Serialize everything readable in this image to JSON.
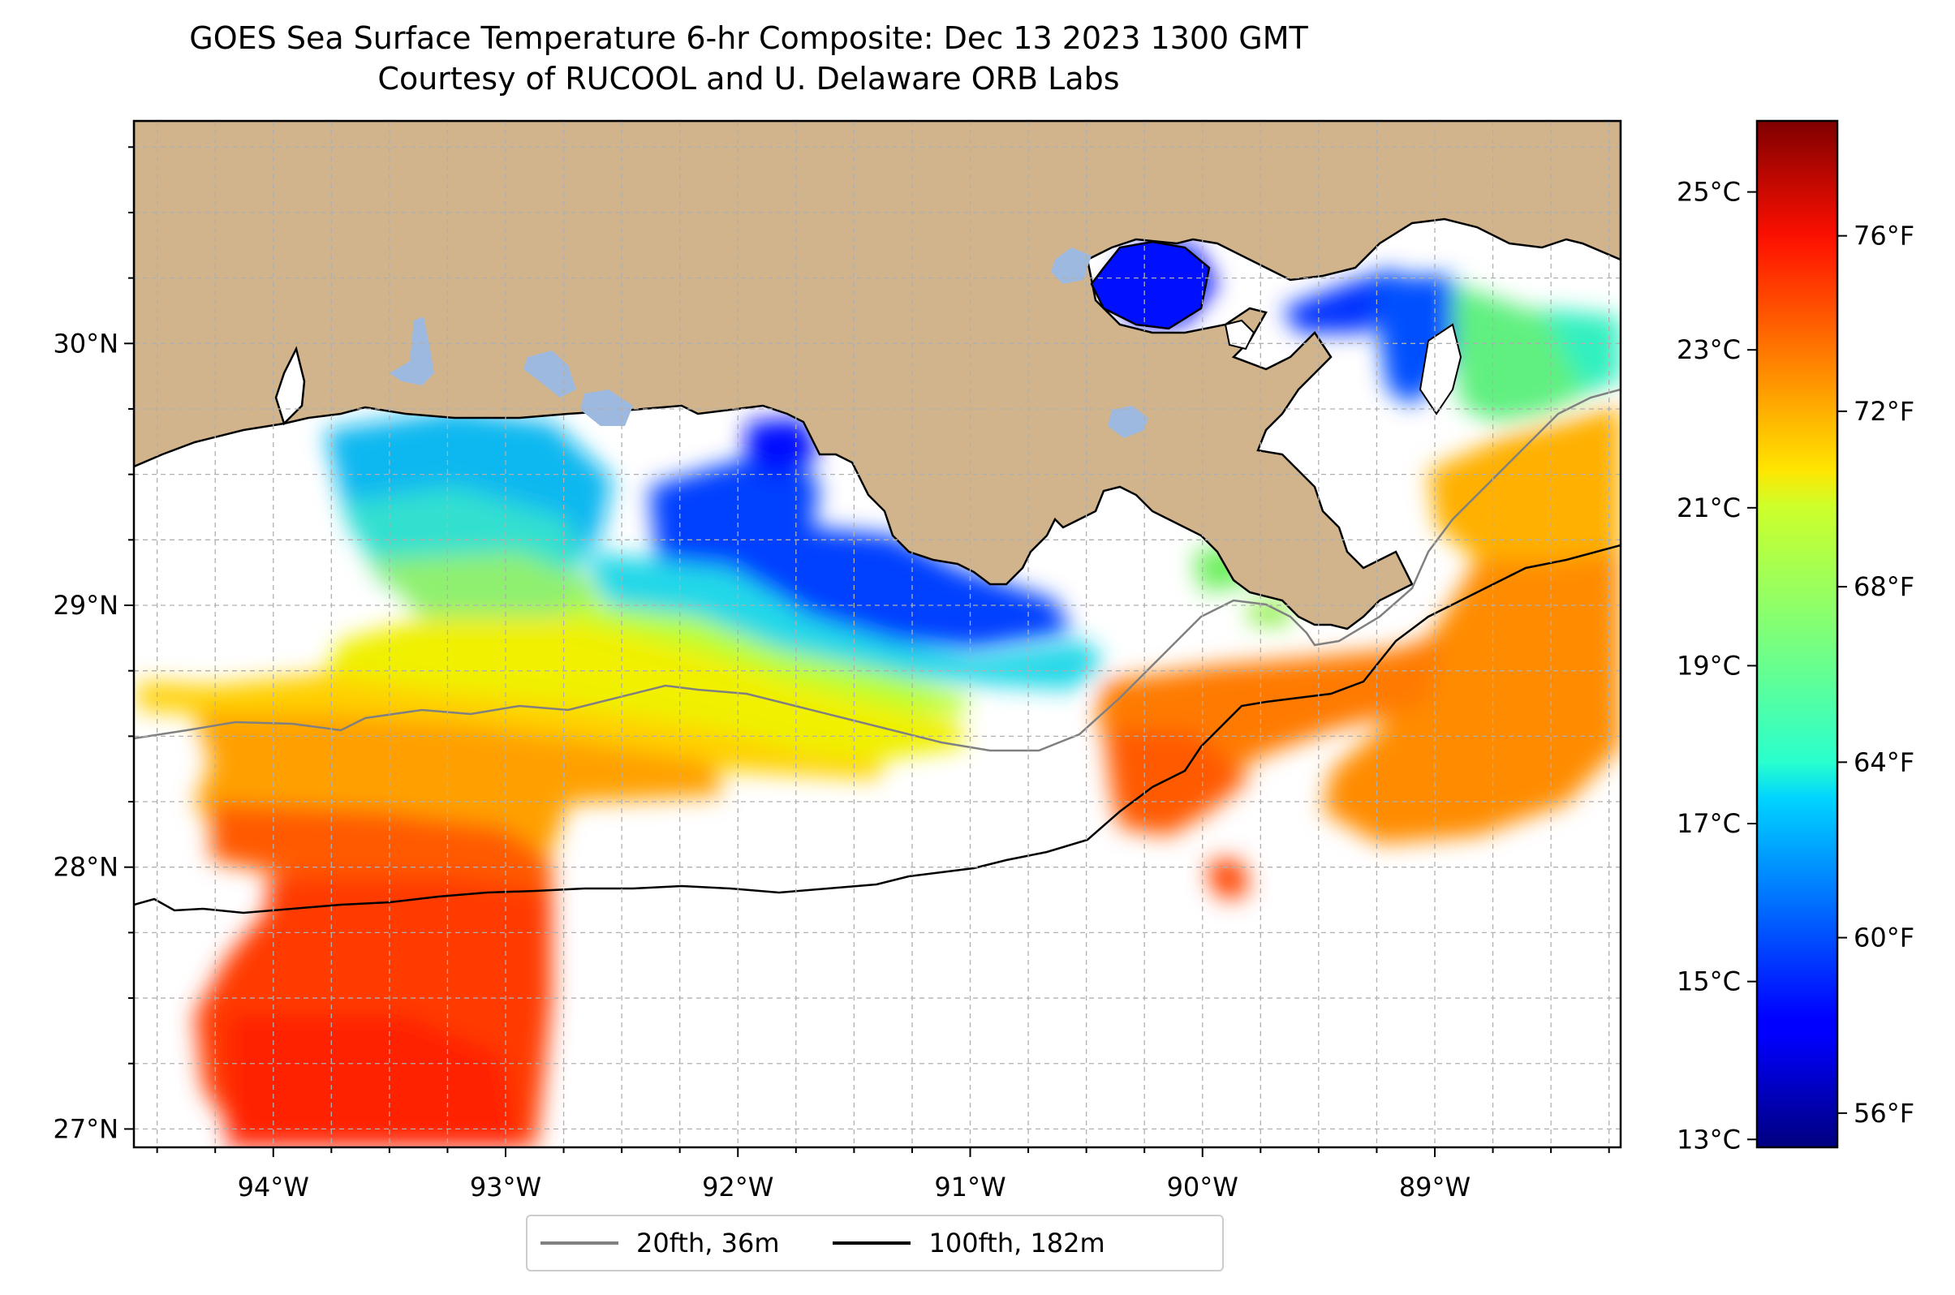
{
  "title": {
    "line1": "GOES Sea Surface Temperature 6-hr Composite: Dec 13 2023 1300 GMT",
    "line2": "Courtesy of RUCOOL and U. Delaware ORB Labs"
  },
  "map": {
    "lon_range": [
      -94.6,
      -88.2
    ],
    "lat_range": [
      26.93,
      30.85
    ],
    "lon_ticks": [
      "94°W",
      "93°W",
      "92°W",
      "91°W",
      "90°W",
      "89°W"
    ],
    "lat_ticks": [
      "27°N",
      "28°N",
      "29°N",
      "30°N"
    ],
    "grid": true,
    "colors": {
      "land": "#d2b48c",
      "inland_water": "#9db9e0",
      "coastline": "#000000",
      "contour_20fth": "#808080",
      "contour_100fth": "#000000"
    }
  },
  "colorbar": {
    "colormap": "jet",
    "celsius_range": [
      12.9,
      25.9
    ],
    "celsius_ticks": [
      "25°C",
      "23°C",
      "21°C",
      "19°C",
      "17°C",
      "15°C",
      "13°C"
    ],
    "fahrenheit_ticks": [
      "76°F",
      "72°F",
      "68°F",
      "64°F",
      "60°F",
      "56°F"
    ]
  },
  "legend": {
    "placement": "bottom-center",
    "items": [
      {
        "label": "20fth, 36m",
        "color": "#808080"
      },
      {
        "label": "100fth, 182m",
        "color": "#000000"
      }
    ]
  }
}
